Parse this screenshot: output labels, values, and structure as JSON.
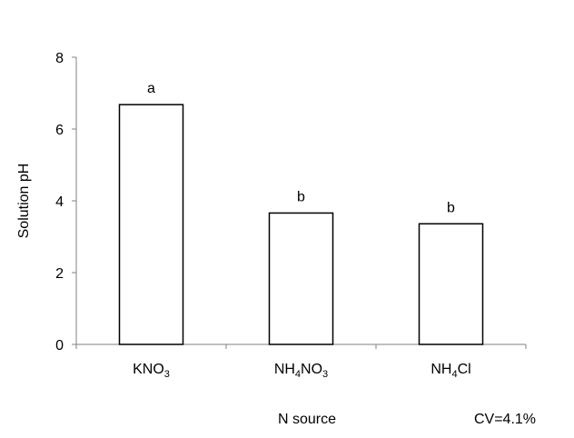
{
  "chart_data": {
    "type": "bar",
    "categories": [
      {
        "label": "KNO3",
        "parts": [
          {
            "t": "KNO"
          },
          {
            "t": "3",
            "sub": true
          }
        ]
      },
      {
        "label": "NH4NO3",
        "parts": [
          {
            "t": "NH"
          },
          {
            "t": "4",
            "sub": true
          },
          {
            "t": "NO"
          },
          {
            "t": "3",
            "sub": true
          }
        ]
      },
      {
        "label": "NH4Cl",
        "parts": [
          {
            "t": "NH"
          },
          {
            "t": "4",
            "sub": true
          },
          {
            "t": "Cl"
          }
        ]
      }
    ],
    "values": [
      6.68,
      3.66,
      3.36
    ],
    "significance_letters": [
      "a",
      "b",
      "b"
    ],
    "xlabel": "N source",
    "ylabel": "Solution pH",
    "ylim": [
      0,
      8
    ],
    "yticks": [
      0,
      2,
      4,
      6,
      8
    ],
    "annotation": "CV=4.1%",
    "grid": false,
    "legend": "none",
    "colors": {
      "bar_fill": "#ffffff",
      "bar_stroke": "#000000",
      "axis": "#808080"
    }
  }
}
